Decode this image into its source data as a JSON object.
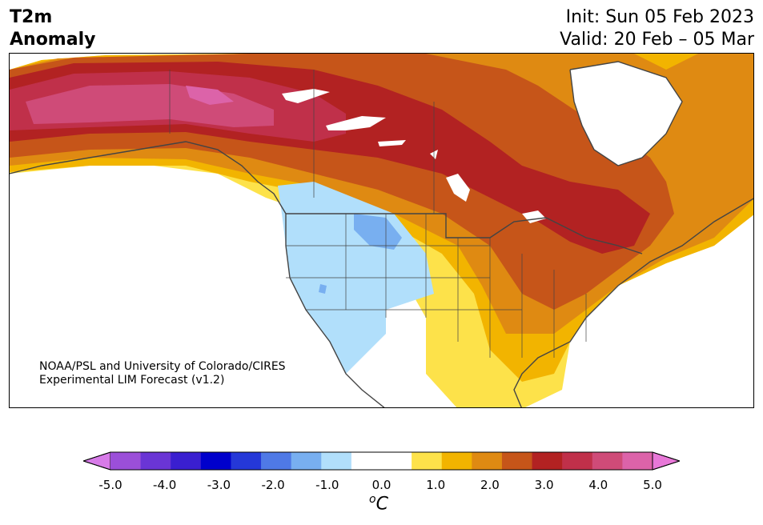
{
  "header": {
    "title_line1": "T2m",
    "title_line2": "Anomaly",
    "init": "Init: Sun 05 Feb 2023",
    "valid": "Valid: 20 Feb – 05 Mar"
  },
  "credit": {
    "line1": "NOAA/PSL and University of Colorado/CIRES",
    "line2": "Experimental LIM Forecast (v1.2)"
  },
  "colorbar": {
    "ticks": [
      "-5.0",
      "-4.0",
      "-3.0",
      "-2.0",
      "-1.0",
      "0.0",
      "1.0",
      "2.0",
      "3.0",
      "4.0",
      "5.0"
    ],
    "unit": "C",
    "unit_prefix": "o",
    "colors": [
      "#d77be8",
      "#9b4fd9",
      "#6a35d5",
      "#3a1fd0",
      "#0000cc",
      "#2538d8",
      "#4f79e6",
      "#78aff0",
      "#b1dffb",
      "#ffffff",
      "#ffffff",
      "#fde24a",
      "#f2b400",
      "#df8a12",
      "#c65519",
      "#b22222",
      "#c0304a",
      "#cf4b78",
      "#dc63a9",
      "#e878d8"
    ]
  },
  "map": {
    "colors": {
      "land": "#ffffff",
      "border": "#444444",
      "water": "#ffffff"
    }
  }
}
